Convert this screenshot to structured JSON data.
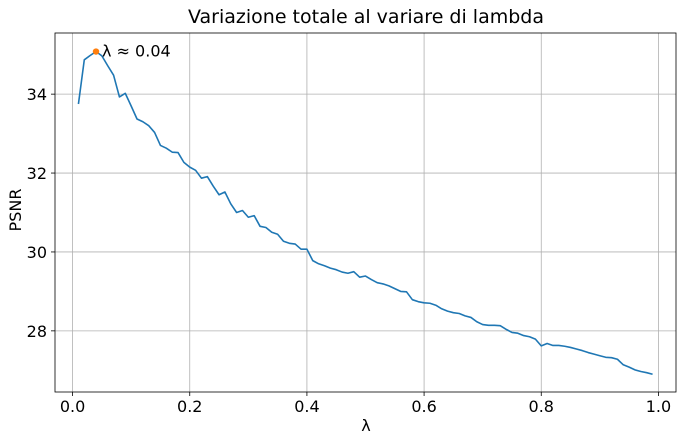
{
  "chart_data": {
    "type": "line",
    "title": "Variazione totale al variare di lambda",
    "xlabel": "λ",
    "ylabel": "PSNR",
    "xlim": [
      -0.03,
      1.03
    ],
    "ylim": [
      26.45,
      35.55
    ],
    "xticks": [
      0.0,
      0.2,
      0.4,
      0.6,
      0.8,
      1.0
    ],
    "xtick_labels": [
      "0.0",
      "0.2",
      "0.4",
      "0.6",
      "0.8",
      "1.0"
    ],
    "yticks": [
      28,
      30,
      32,
      34
    ],
    "ytick_labels": [
      "28",
      "30",
      "32",
      "34"
    ],
    "grid": true,
    "line_color": "#1f77b4",
    "marker_color": "#ff7f0e",
    "series": [
      {
        "x": [
          0.01,
          0.02,
          0.03,
          0.04,
          0.05,
          0.06,
          0.07,
          0.08,
          0.09,
          0.1,
          0.11,
          0.12,
          0.13,
          0.14,
          0.15,
          0.16,
          0.17,
          0.18,
          0.19,
          0.2,
          0.21,
          0.22,
          0.23,
          0.24,
          0.25,
          0.26,
          0.27,
          0.28,
          0.29,
          0.3,
          0.31,
          0.32,
          0.33,
          0.34,
          0.35,
          0.36,
          0.37,
          0.38,
          0.39,
          0.4,
          0.41,
          0.42,
          0.43,
          0.44,
          0.45,
          0.46,
          0.47,
          0.48,
          0.49,
          0.5,
          0.51,
          0.52,
          0.53,
          0.54,
          0.55,
          0.56,
          0.57,
          0.58,
          0.59,
          0.6,
          0.61,
          0.62,
          0.63,
          0.64,
          0.65,
          0.66,
          0.67,
          0.68,
          0.69,
          0.7,
          0.71,
          0.72,
          0.73,
          0.74,
          0.75,
          0.76,
          0.77,
          0.78,
          0.79,
          0.8,
          0.81,
          0.82,
          0.83,
          0.84,
          0.85,
          0.86,
          0.87,
          0.88,
          0.89,
          0.9,
          0.91,
          0.92,
          0.93,
          0.94,
          0.95,
          0.96,
          0.97,
          0.98,
          0.99
        ],
        "y": [
          33.75,
          34.87,
          34.98,
          35.08,
          34.97,
          34.72,
          34.48,
          33.93,
          34.02,
          33.7,
          33.37,
          33.3,
          33.2,
          33.03,
          32.7,
          32.63,
          32.53,
          32.52,
          32.27,
          32.15,
          32.07,
          31.87,
          31.91,
          31.67,
          31.45,
          31.52,
          31.22,
          31.0,
          31.05,
          30.88,
          30.92,
          30.65,
          30.62,
          30.5,
          30.45,
          30.27,
          30.22,
          30.2,
          30.07,
          30.07,
          29.78,
          29.7,
          29.65,
          29.59,
          29.55,
          29.49,
          29.46,
          29.5,
          29.36,
          29.39,
          29.3,
          29.22,
          29.19,
          29.14,
          29.07,
          29.0,
          28.99,
          28.79,
          28.74,
          28.71,
          28.7,
          28.65,
          28.56,
          28.5,
          28.46,
          28.44,
          28.38,
          28.34,
          28.23,
          28.16,
          28.14,
          28.14,
          28.13,
          28.04,
          27.96,
          27.94,
          27.88,
          27.85,
          27.79,
          27.62,
          27.68,
          27.63,
          27.63,
          27.61,
          27.58,
          27.54,
          27.5,
          27.45,
          27.41,
          27.37,
          27.33,
          27.32,
          27.28,
          27.14,
          27.08,
          27.01,
          26.97,
          26.94,
          26.9
        ]
      }
    ],
    "annotations": [
      {
        "x": 0.04,
        "y": 35.08,
        "text": "λ ≈ 0.04"
      }
    ]
  }
}
